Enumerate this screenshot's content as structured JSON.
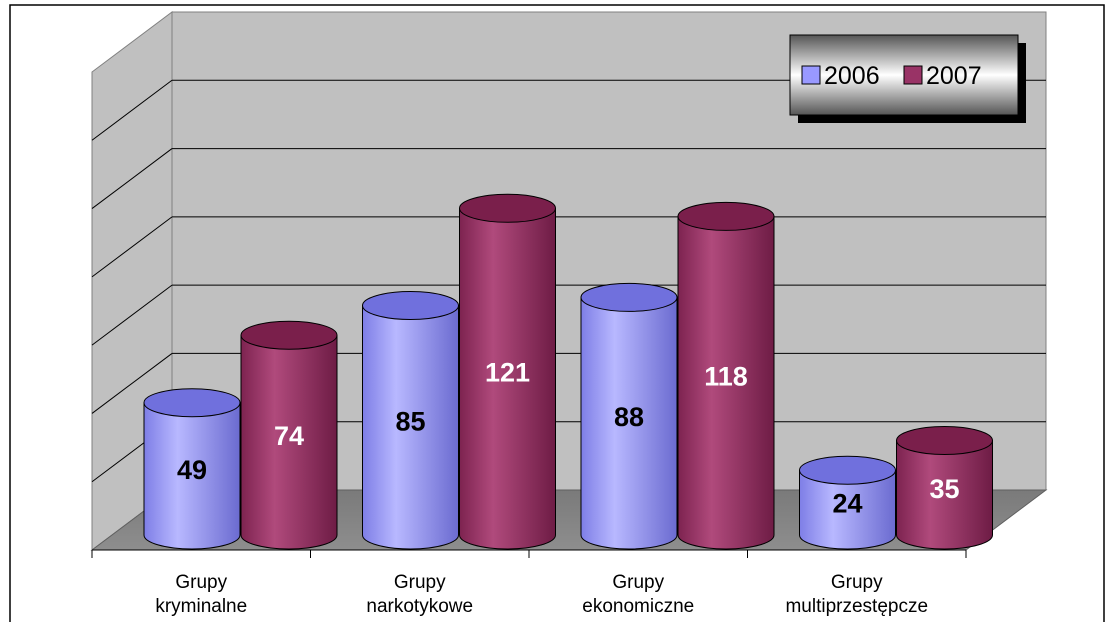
{
  "chart_data": {
    "type": "bar",
    "categories": [
      "Grupy\nkryminalne",
      "Grupy\nnarkotykowe",
      "Grupy\nekonomiczne",
      "Grupy\nmultiprzestępcze"
    ],
    "series": [
      {
        "name": "2006",
        "values": [
          49,
          85,
          88,
          24
        ],
        "color": "#9999ff"
      },
      {
        "name": "2007",
        "values": [
          74,
          121,
          118,
          35
        ],
        "color": "#993366"
      }
    ],
    "ylim": [
      0,
      140
    ],
    "legend_position": "top-right",
    "grid": true,
    "style": "3d-cylinder",
    "data_labels": true
  }
}
